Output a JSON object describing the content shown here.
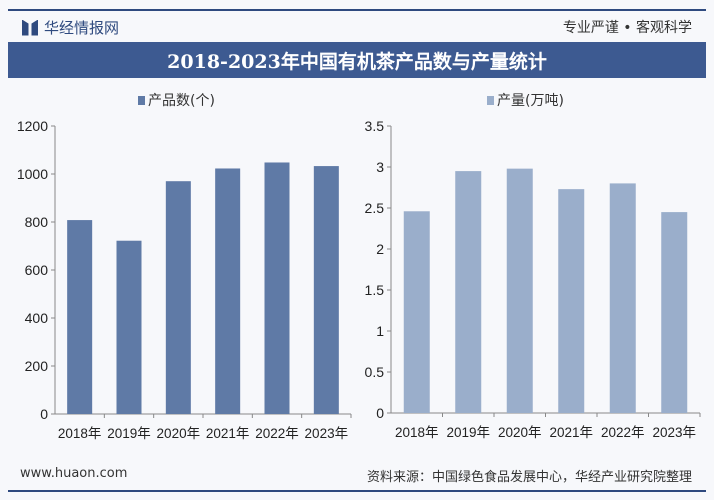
{
  "header": {
    "brand": "华经情报网",
    "slogan": "专业严谨 • 客观科学",
    "title": "2018-2023年中国有机茶产品数与产量统计"
  },
  "footer": {
    "website": "www.huaon.com",
    "source": "资料来源：中国绿色食品发展中心，华经产业研究院整理"
  },
  "colors": {
    "title_bar": "#3d5a91",
    "series_left": "#5f7aa6",
    "series_right": "#9aaecb"
  },
  "chart_data": [
    {
      "type": "bar",
      "categories": [
        "2018年",
        "2019年",
        "2020年",
        "2021年",
        "2022年",
        "2023年"
      ],
      "series": [
        {
          "name": "产品数(个)",
          "values": [
            808,
            722,
            970,
            1023,
            1048,
            1033
          ]
        }
      ],
      "ylim": [
        0,
        1200
      ],
      "yticks": [
        "0",
        "200",
        "400",
        "600",
        "800",
        "1000",
        "1200"
      ],
      "grid": false,
      "legend": "top-center"
    },
    {
      "type": "bar",
      "categories": [
        "2018年",
        "2019年",
        "2020年",
        "2021年",
        "2022年",
        "2023年"
      ],
      "series": [
        {
          "name": "产量(万吨)",
          "values": [
            2.46,
            2.95,
            2.98,
            2.73,
            2.8,
            2.45
          ]
        }
      ],
      "ylim": [
        0,
        3.5
      ],
      "yticks": [
        "0",
        "0.5",
        "1",
        "1.5",
        "2",
        "2.5",
        "3",
        "3.5"
      ],
      "grid": false,
      "legend": "top-center"
    }
  ]
}
